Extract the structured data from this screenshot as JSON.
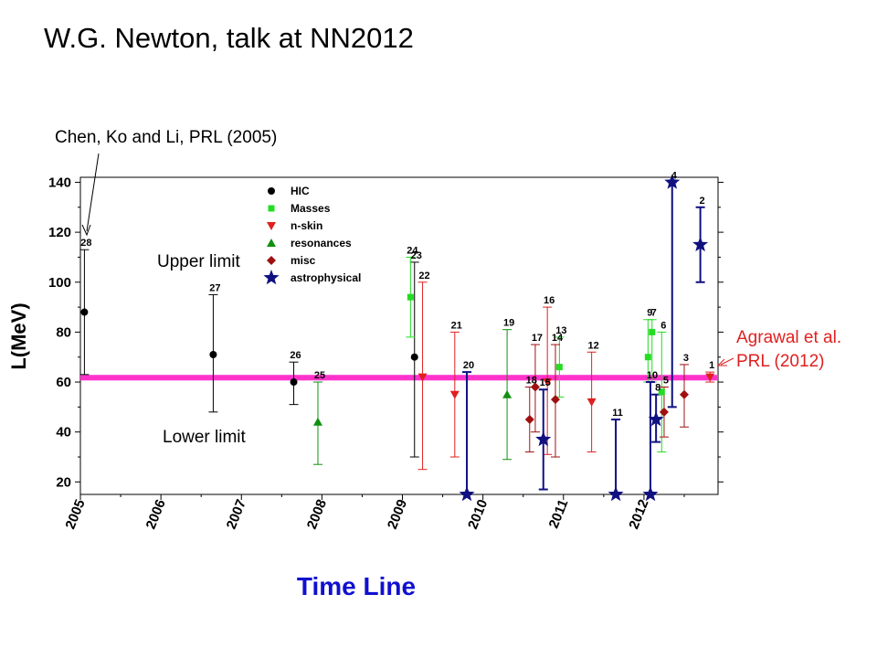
{
  "slide": {
    "title": "W.G. Newton, talk at NN2012",
    "annot_chen": "Chen, Ko and Li, PRL (2005)",
    "annot_upper": "Upper limit",
    "annot_lower": "Lower limit",
    "annot_agrawal_1": "Agrawal et al.",
    "annot_agrawal_2": "PRL (2012)",
    "annot_color": "#e02020"
  },
  "chart_data": {
    "type": "scatter",
    "title": "",
    "xlabel": "Time Line",
    "ylabel": "L(MeV)",
    "xlim": [
      2005.0,
      2012.92
    ],
    "ylim": [
      15,
      142
    ],
    "y_ticks": [
      "20",
      "40",
      "60",
      "80",
      "100",
      "120",
      "140"
    ],
    "x_ticks": [
      "2005",
      "2006",
      "2007",
      "2008",
      "2009",
      "2010",
      "2011",
      "2012"
    ],
    "grid": false,
    "legend_position": "top-center",
    "reference_band": {
      "y_low": 61,
      "y_high": 62.5,
      "color": "#ff33cc"
    },
    "series": [
      {
        "name": "HIC",
        "marker": "circle",
        "color": "#000000",
        "points": [
          {
            "label": "28",
            "x": 2005.05,
            "y": 88,
            "lo": 63,
            "hi": 113
          },
          {
            "label": "27",
            "x": 2006.65,
            "y": 71,
            "lo": 48,
            "hi": 95
          },
          {
            "label": "26",
            "x": 2007.65,
            "y": 60,
            "lo": 51,
            "hi": 68
          },
          {
            "label": "23",
            "x": 2009.15,
            "y": 70,
            "lo": 30,
            "hi": 108
          }
        ]
      },
      {
        "name": "Masses",
        "marker": "square",
        "color": "#22dd22",
        "points": [
          {
            "label": "24",
            "x": 2009.1,
            "y": 94,
            "lo": 78,
            "hi": 110
          },
          {
            "label": "13",
            "x": 2010.95,
            "y": 66,
            "lo": 54,
            "hi": 78
          },
          {
            "label": "9",
            "x": 2012.05,
            "y": 70,
            "lo": 60,
            "hi": 85
          },
          {
            "label": "7",
            "x": 2012.1,
            "y": 80,
            "lo": 60,
            "hi": 85
          },
          {
            "label": "6",
            "x": 2012.22,
            "y": 56,
            "lo": 32,
            "hi": 80
          }
        ]
      },
      {
        "name": "n-skin",
        "marker": "triangle-down",
        "color": "#e02020",
        "points": [
          {
            "label": "22",
            "x": 2009.25,
            "y": 62,
            "lo": 25,
            "hi": 100
          },
          {
            "label": "21",
            "x": 2009.65,
            "y": 55,
            "lo": 30,
            "hi": 80
          },
          {
            "label": "16",
            "x": 2010.8,
            "y": 60,
            "lo": 31,
            "hi": 90
          },
          {
            "label": "12",
            "x": 2011.35,
            "y": 52,
            "lo": 32,
            "hi": 72
          },
          {
            "label": "1",
            "x": 2012.82,
            "y": 62,
            "lo": 60,
            "hi": 64
          }
        ]
      },
      {
        "name": "resonances",
        "marker": "triangle-up",
        "color": "#109010",
        "points": [
          {
            "label": "25",
            "x": 2007.95,
            "y": 44,
            "lo": 27,
            "hi": 60
          },
          {
            "label": "19",
            "x": 2010.3,
            "y": 55,
            "lo": 29,
            "hi": 81
          }
        ]
      },
      {
        "name": "misc",
        "marker": "diamond",
        "color": "#a01010",
        "points": [
          {
            "label": "18",
            "x": 2010.58,
            "y": 45,
            "lo": 32,
            "hi": 58
          },
          {
            "label": "17",
            "x": 2010.65,
            "y": 58,
            "lo": 40,
            "hi": 75
          },
          {
            "label": "14",
            "x": 2010.9,
            "y": 53,
            "lo": 30,
            "hi": 75
          },
          {
            "label": "5",
            "x": 2012.25,
            "y": 48,
            "lo": 38,
            "hi": 58
          },
          {
            "label": "3",
            "x": 2012.5,
            "y": 55,
            "lo": 42,
            "hi": 67
          }
        ]
      },
      {
        "name": "astrophysical",
        "marker": "star",
        "color": "#101080",
        "points": [
          {
            "label": "20",
            "x": 2009.8,
            "y": 15,
            "lo": 15,
            "hi": 64
          },
          {
            "label": "15",
            "x": 2010.75,
            "y": 37,
            "lo": 17,
            "hi": 57
          },
          {
            "label": "11",
            "x": 2011.65,
            "y": 15,
            "lo": 15,
            "hi": 45
          },
          {
            "label": "10",
            "x": 2012.08,
            "y": 15,
            "lo": 15,
            "hi": 60
          },
          {
            "label": "8",
            "x": 2012.15,
            "y": 45,
            "lo": 36,
            "hi": 55
          },
          {
            "label": "4",
            "x": 2012.35,
            "y": 140,
            "lo": 50,
            "hi": 140
          },
          {
            "label": "2",
            "x": 2012.7,
            "y": 115,
            "lo": 100,
            "hi": 130
          }
        ]
      }
    ]
  }
}
